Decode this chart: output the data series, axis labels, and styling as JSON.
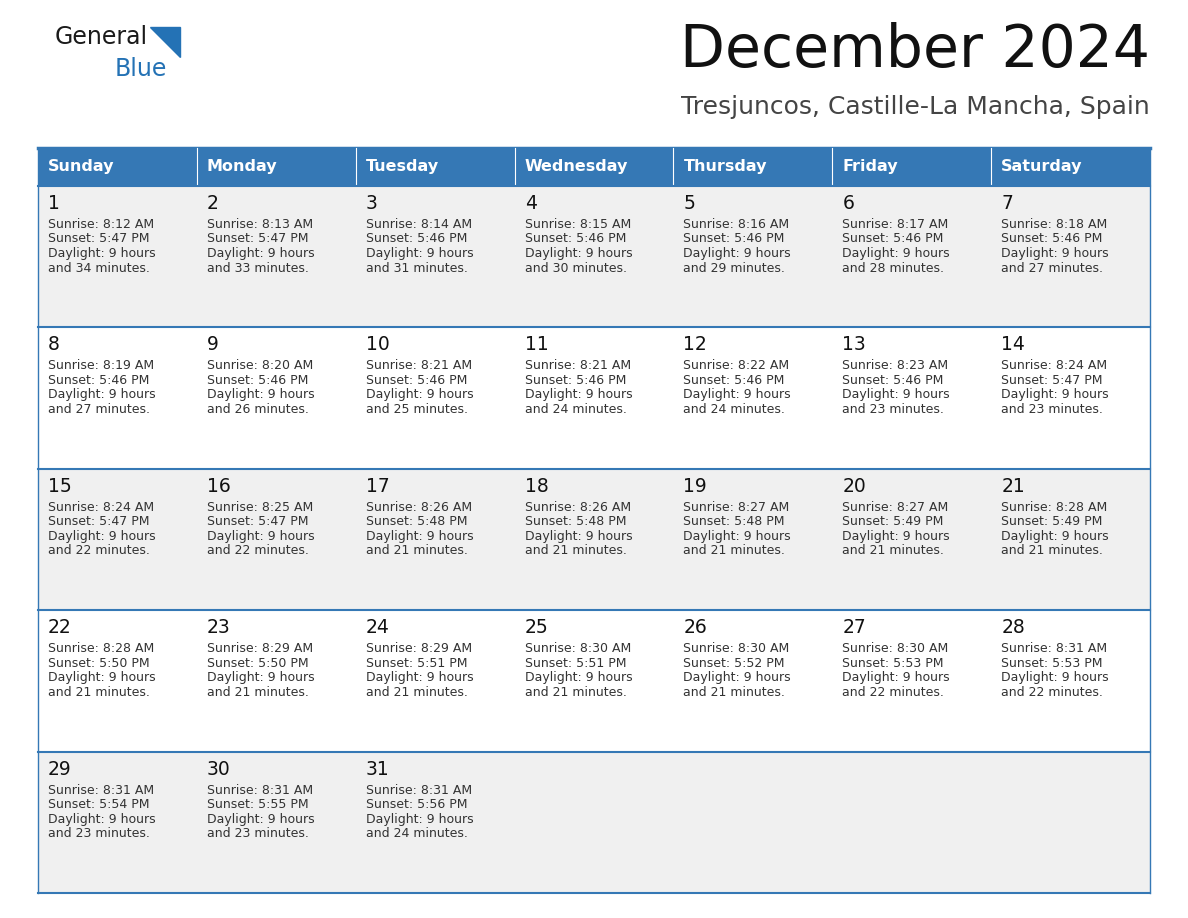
{
  "title": "December 2024",
  "subtitle": "Tresjuncos, Castille-La Mancha, Spain",
  "header_color": "#3578b5",
  "header_text_color": "#ffffff",
  "cell_bg_even": "#f0f0f0",
  "cell_bg_odd": "#ffffff",
  "text_color": "#333333",
  "day_num_color": "#111111",
  "line_color": "#3578b5",
  "days_of_week": [
    "Sunday",
    "Monday",
    "Tuesday",
    "Wednesday",
    "Thursday",
    "Friday",
    "Saturday"
  ],
  "weeks": [
    [
      {
        "day": "1",
        "sunrise": "8:12 AM",
        "sunset": "5:47 PM",
        "daylight_extra": "and 34 minutes."
      },
      {
        "day": "2",
        "sunrise": "8:13 AM",
        "sunset": "5:47 PM",
        "daylight_extra": "and 33 minutes."
      },
      {
        "day": "3",
        "sunrise": "8:14 AM",
        "sunset": "5:46 PM",
        "daylight_extra": "and 31 minutes."
      },
      {
        "day": "4",
        "sunrise": "8:15 AM",
        "sunset": "5:46 PM",
        "daylight_extra": "and 30 minutes."
      },
      {
        "day": "5",
        "sunrise": "8:16 AM",
        "sunset": "5:46 PM",
        "daylight_extra": "and 29 minutes."
      },
      {
        "day": "6",
        "sunrise": "8:17 AM",
        "sunset": "5:46 PM",
        "daylight_extra": "and 28 minutes."
      },
      {
        "day": "7",
        "sunrise": "8:18 AM",
        "sunset": "5:46 PM",
        "daylight_extra": "and 27 minutes."
      }
    ],
    [
      {
        "day": "8",
        "sunrise": "8:19 AM",
        "sunset": "5:46 PM",
        "daylight_extra": "and 27 minutes."
      },
      {
        "day": "9",
        "sunrise": "8:20 AM",
        "sunset": "5:46 PM",
        "daylight_extra": "and 26 minutes."
      },
      {
        "day": "10",
        "sunrise": "8:21 AM",
        "sunset": "5:46 PM",
        "daylight_extra": "and 25 minutes."
      },
      {
        "day": "11",
        "sunrise": "8:21 AM",
        "sunset": "5:46 PM",
        "daylight_extra": "and 24 minutes."
      },
      {
        "day": "12",
        "sunrise": "8:22 AM",
        "sunset": "5:46 PM",
        "daylight_extra": "and 24 minutes."
      },
      {
        "day": "13",
        "sunrise": "8:23 AM",
        "sunset": "5:46 PM",
        "daylight_extra": "and 23 minutes."
      },
      {
        "day": "14",
        "sunrise": "8:24 AM",
        "sunset": "5:47 PM",
        "daylight_extra": "and 23 minutes."
      }
    ],
    [
      {
        "day": "15",
        "sunrise": "8:24 AM",
        "sunset": "5:47 PM",
        "daylight_extra": "and 22 minutes."
      },
      {
        "day": "16",
        "sunrise": "8:25 AM",
        "sunset": "5:47 PM",
        "daylight_extra": "and 22 minutes."
      },
      {
        "day": "17",
        "sunrise": "8:26 AM",
        "sunset": "5:48 PM",
        "daylight_extra": "and 21 minutes."
      },
      {
        "day": "18",
        "sunrise": "8:26 AM",
        "sunset": "5:48 PM",
        "daylight_extra": "and 21 minutes."
      },
      {
        "day": "19",
        "sunrise": "8:27 AM",
        "sunset": "5:48 PM",
        "daylight_extra": "and 21 minutes."
      },
      {
        "day": "20",
        "sunrise": "8:27 AM",
        "sunset": "5:49 PM",
        "daylight_extra": "and 21 minutes."
      },
      {
        "day": "21",
        "sunrise": "8:28 AM",
        "sunset": "5:49 PM",
        "daylight_extra": "and 21 minutes."
      }
    ],
    [
      {
        "day": "22",
        "sunrise": "8:28 AM",
        "sunset": "5:50 PM",
        "daylight_extra": "and 21 minutes."
      },
      {
        "day": "23",
        "sunrise": "8:29 AM",
        "sunset": "5:50 PM",
        "daylight_extra": "and 21 minutes."
      },
      {
        "day": "24",
        "sunrise": "8:29 AM",
        "sunset": "5:51 PM",
        "daylight_extra": "and 21 minutes."
      },
      {
        "day": "25",
        "sunrise": "8:30 AM",
        "sunset": "5:51 PM",
        "daylight_extra": "and 21 minutes."
      },
      {
        "day": "26",
        "sunrise": "8:30 AM",
        "sunset": "5:52 PM",
        "daylight_extra": "and 21 minutes."
      },
      {
        "day": "27",
        "sunrise": "8:30 AM",
        "sunset": "5:53 PM",
        "daylight_extra": "and 22 minutes."
      },
      {
        "day": "28",
        "sunrise": "8:31 AM",
        "sunset": "5:53 PM",
        "daylight_extra": "and 22 minutes."
      }
    ],
    [
      {
        "day": "29",
        "sunrise": "8:31 AM",
        "sunset": "5:54 PM",
        "daylight_extra": "and 23 minutes."
      },
      {
        "day": "30",
        "sunrise": "8:31 AM",
        "sunset": "5:55 PM",
        "daylight_extra": "and 23 minutes."
      },
      {
        "day": "31",
        "sunrise": "8:31 AM",
        "sunset": "5:56 PM",
        "daylight_extra": "and 24 minutes."
      },
      null,
      null,
      null,
      null
    ]
  ],
  "logo_general_color": "#1a1a1a",
  "logo_blue_color": "#2472b5",
  "logo_triangle_color": "#2472b5"
}
